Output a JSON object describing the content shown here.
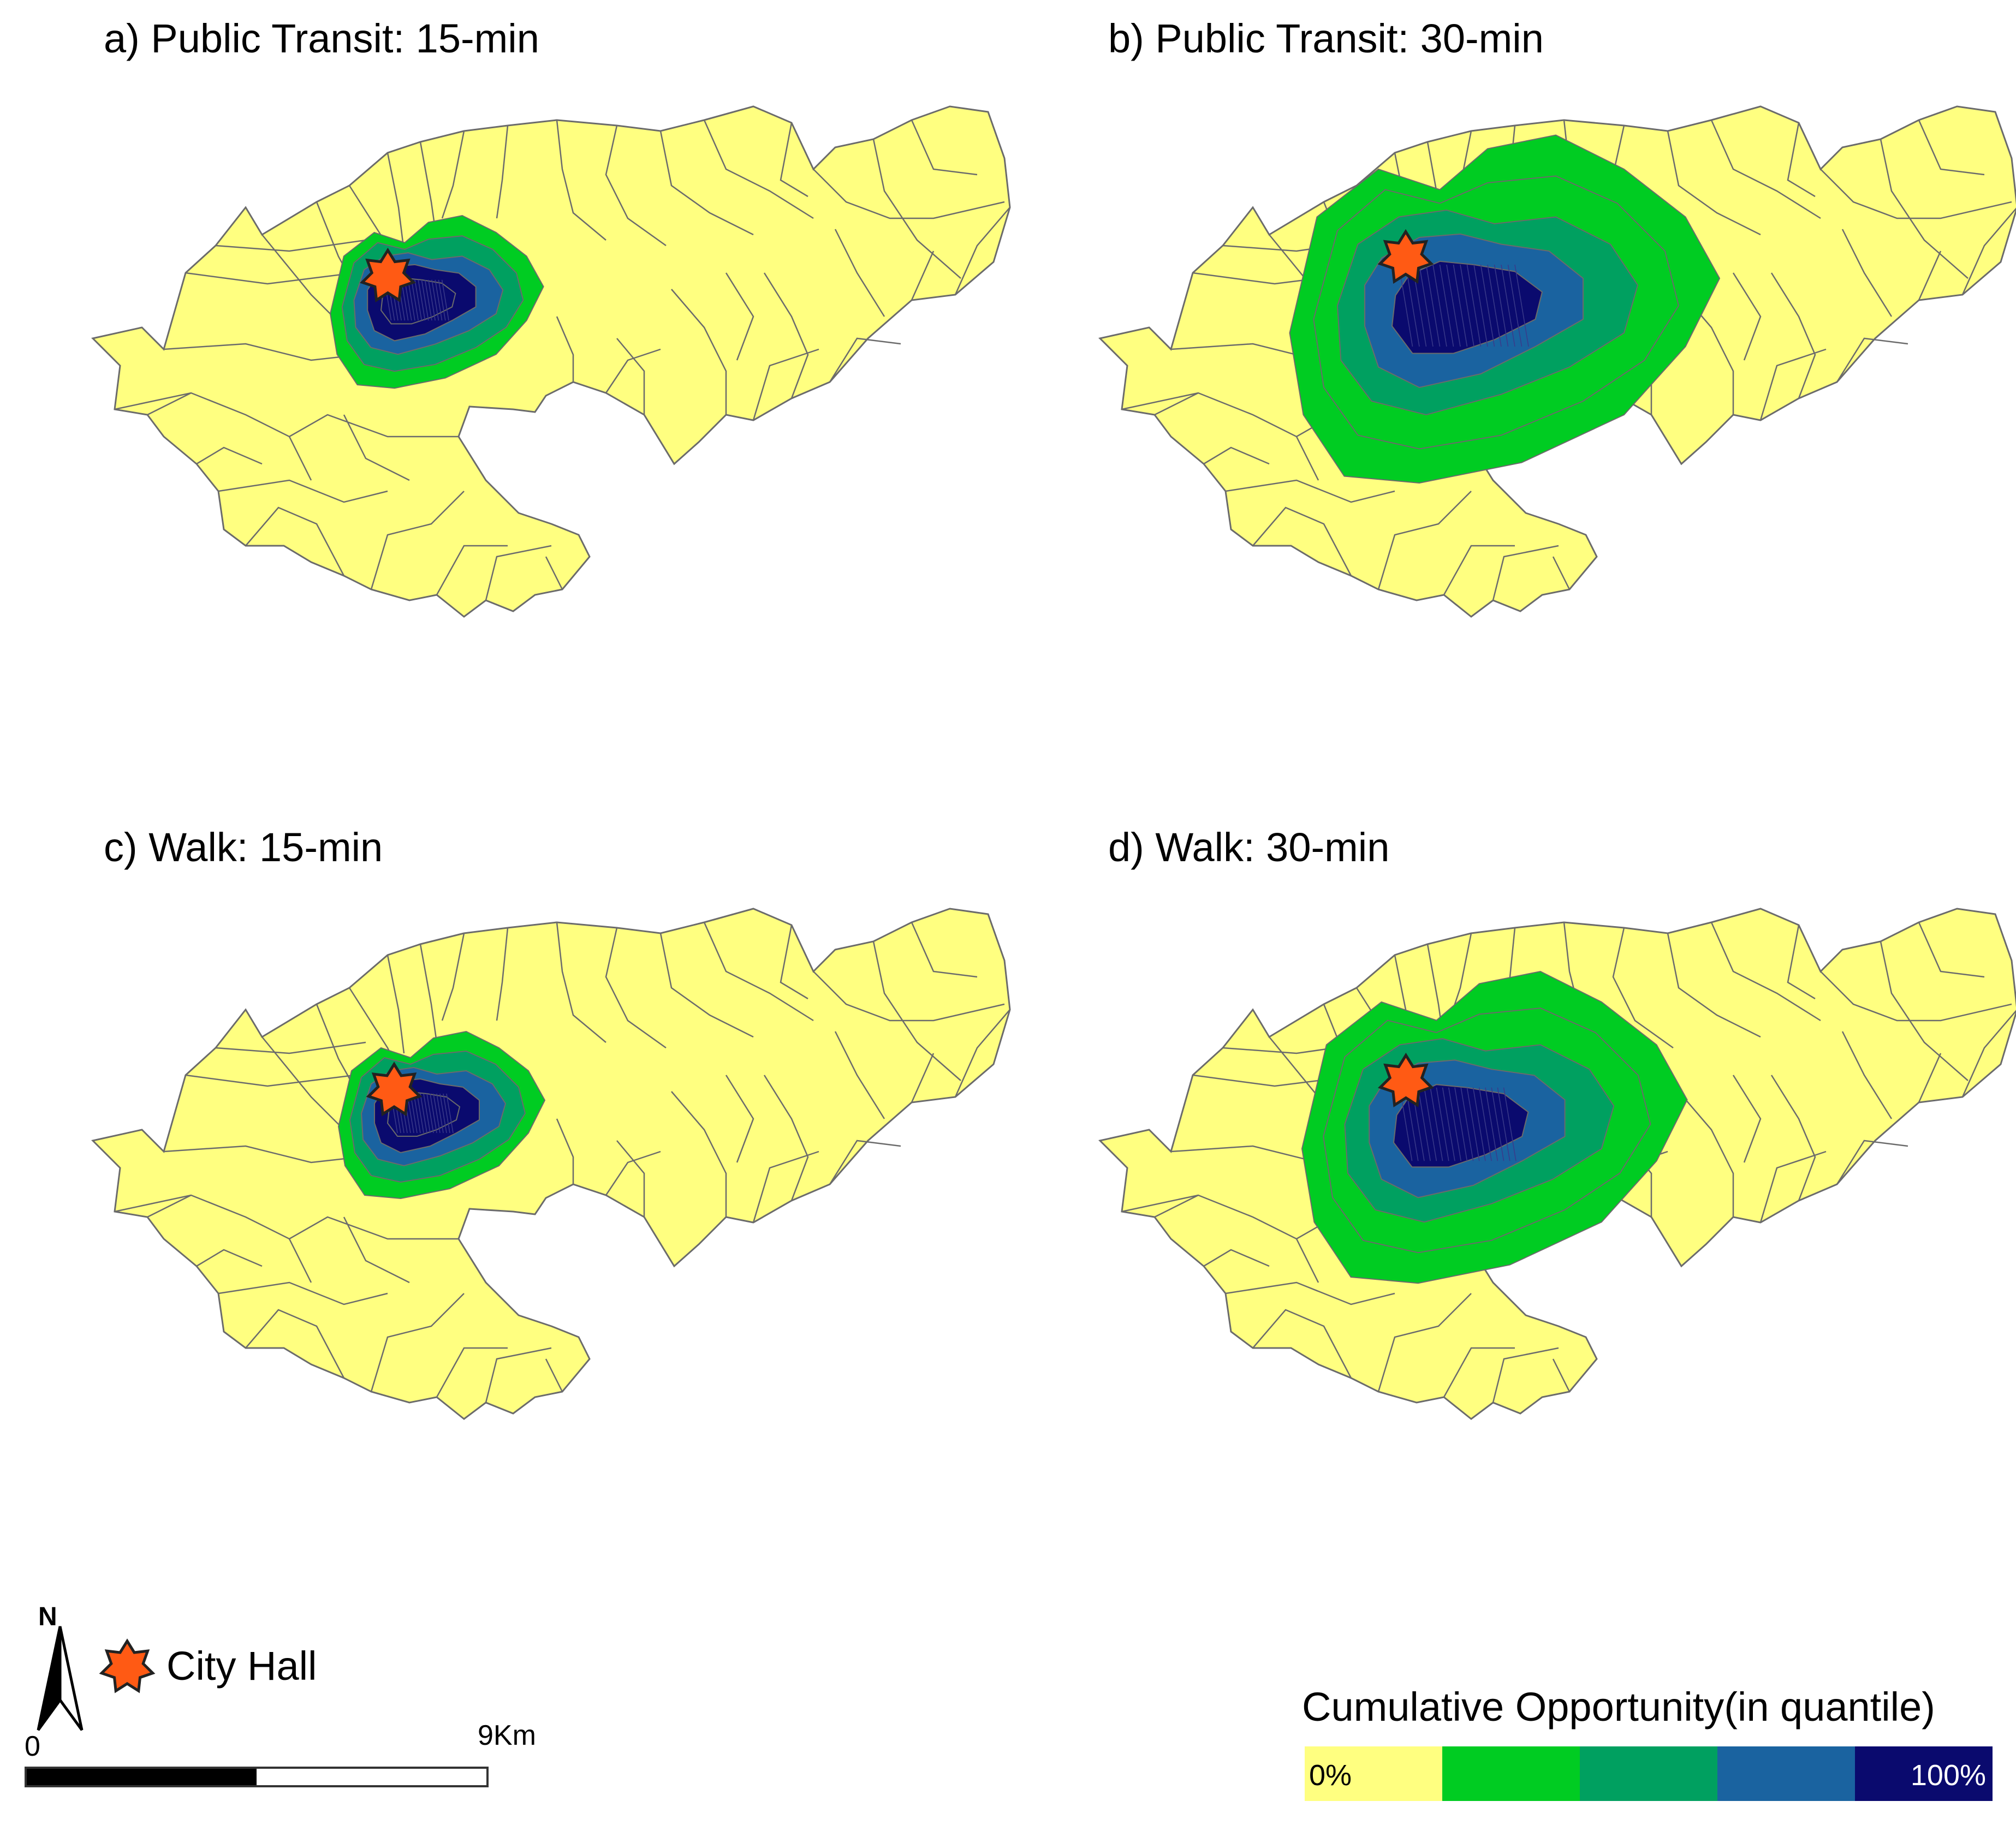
{
  "panels": [
    {
      "title": "a) Public Transit: 15-min",
      "level": [
        1,
        3,
        4,
        4
      ]
    },
    {
      "title": "b) Public Transit: 30-min",
      "level": [
        3,
        4,
        4,
        4
      ]
    },
    {
      "title": "c) Walk: 15-min",
      "level": [
        1,
        2,
        3,
        4
      ]
    },
    {
      "title": "d) Walk: 30-min",
      "level": [
        2,
        3,
        4,
        4
      ]
    }
  ],
  "legend": {
    "city_hall_label": "City Hall",
    "north_label": "N",
    "scale_zero": "0",
    "scale_max": "9Km",
    "colorbar_title": "Cumulative Opportunity(in quantile)",
    "colorbar_low": "0%",
    "colorbar_high": "100%",
    "colors": [
      "#ffff80",
      "#00cc22",
      "#00a060",
      "#1a63a0",
      "#0a0a6e"
    ]
  },
  "colors": {
    "boundary": "#6b6b6b",
    "star_fill": "#ff5a14",
    "star_stroke": "#222222"
  }
}
